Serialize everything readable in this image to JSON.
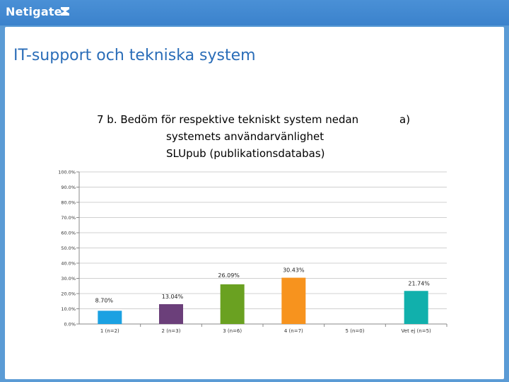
{
  "header": {
    "logo_text": "Netigate"
  },
  "page": {
    "title": "IT-support och tekniska system"
  },
  "chart_data": {
    "type": "bar",
    "title_lines": [
      "7 b. Bedöm för respektive tekniskt system nedan",
      "systemets användarvänlighet",
      "SLUpub (publikationsdatabas)"
    ],
    "title_suffix": "a)",
    "categories": [
      "1 (n=2)",
      "2 (n=3)",
      "3 (n=6)",
      "4 (n=7)",
      "5 (n=0)",
      "Vet ej (n=5)"
    ],
    "values": [
      8.7,
      13.04,
      26.09,
      30.43,
      0,
      21.74
    ],
    "value_labels": [
      "8.70%",
      "13.04%",
      "26.09%",
      "30.43%",
      "",
      "21.74%"
    ],
    "colors": [
      "#1ba1e2",
      "#6b3f7a",
      "#6aa121",
      "#f7931e",
      "#cccccc",
      "#11b0ac"
    ],
    "yticks": [
      "0.0%",
      "10.0%",
      "20.0%",
      "30.0%",
      "40.0%",
      "50.0%",
      "60.0%",
      "70.0%",
      "80.0%",
      "90.0%",
      "100.0%"
    ],
    "ylim": [
      0,
      100
    ],
    "grid": true,
    "legend": "none"
  }
}
